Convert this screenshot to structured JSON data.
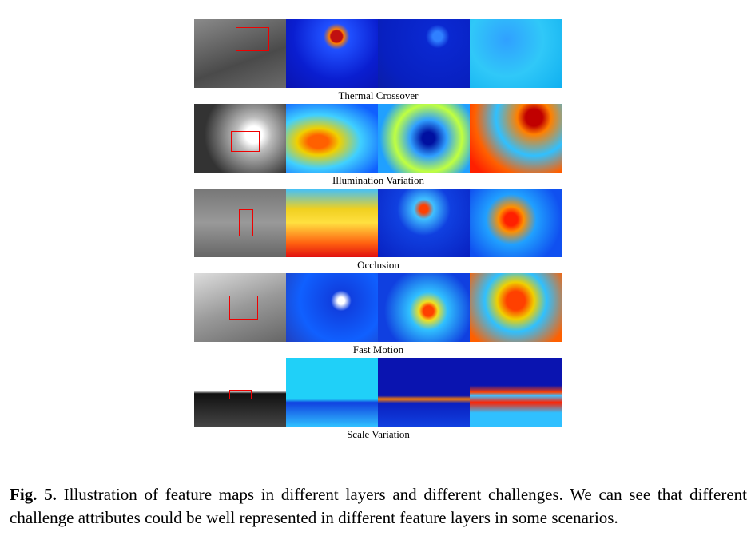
{
  "figure": {
    "rows": [
      {
        "label": "Thermal Crossover"
      },
      {
        "label": "Illumination Variation"
      },
      {
        "label": "Occlusion"
      },
      {
        "label": "Fast Motion"
      },
      {
        "label": "Scale Variation"
      }
    ]
  },
  "caption": {
    "label": "Fig. 5.",
    "text": "Illustration of feature maps in different layers and different challenges. We can see that different challenge attributes could be well represented in different feature layers in some scenarios."
  }
}
